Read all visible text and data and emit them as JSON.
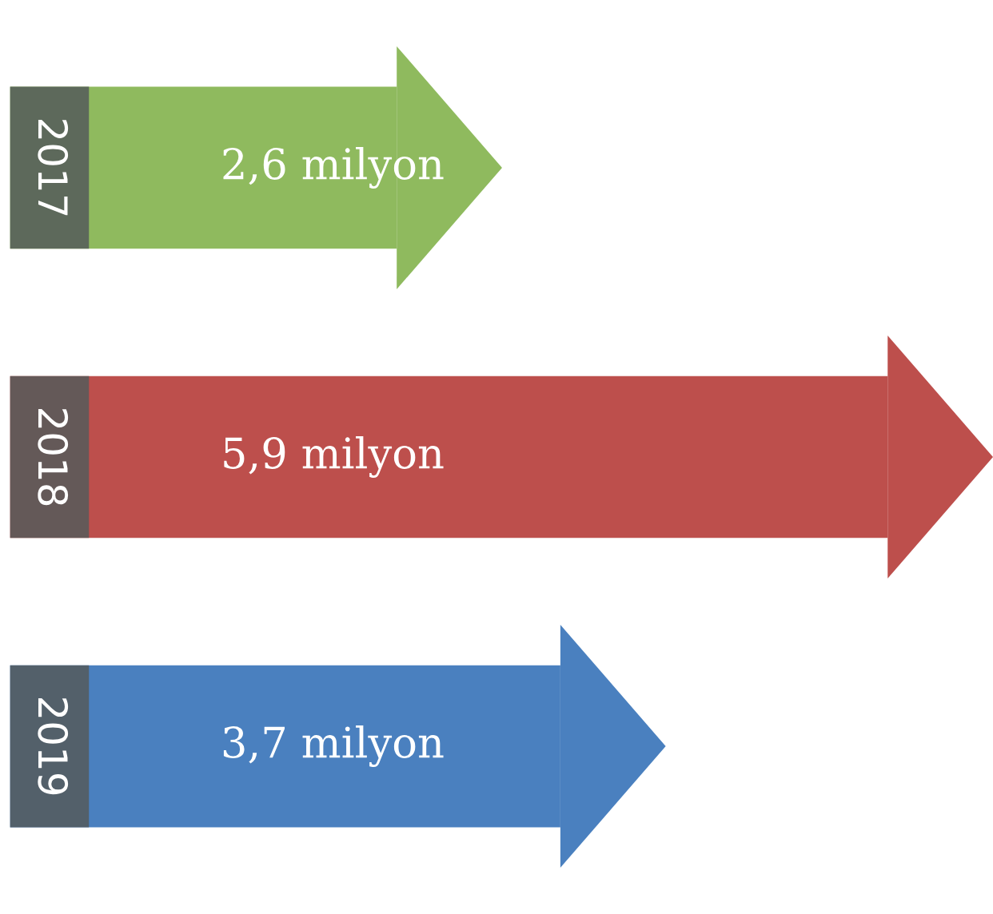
{
  "chart_data": {
    "type": "bar",
    "orientation": "horizontal",
    "categories": [
      "2017",
      "2018",
      "2019"
    ],
    "values": [
      2.6,
      5.9,
      3.7
    ],
    "colors": [
      "#8fba5e",
      "#bd4f4c",
      "#4a80bf"
    ],
    "value_labels": [
      "2,6 milyon",
      "5,9 milyon",
      "3,7 milyon"
    ],
    "legend": false
  }
}
